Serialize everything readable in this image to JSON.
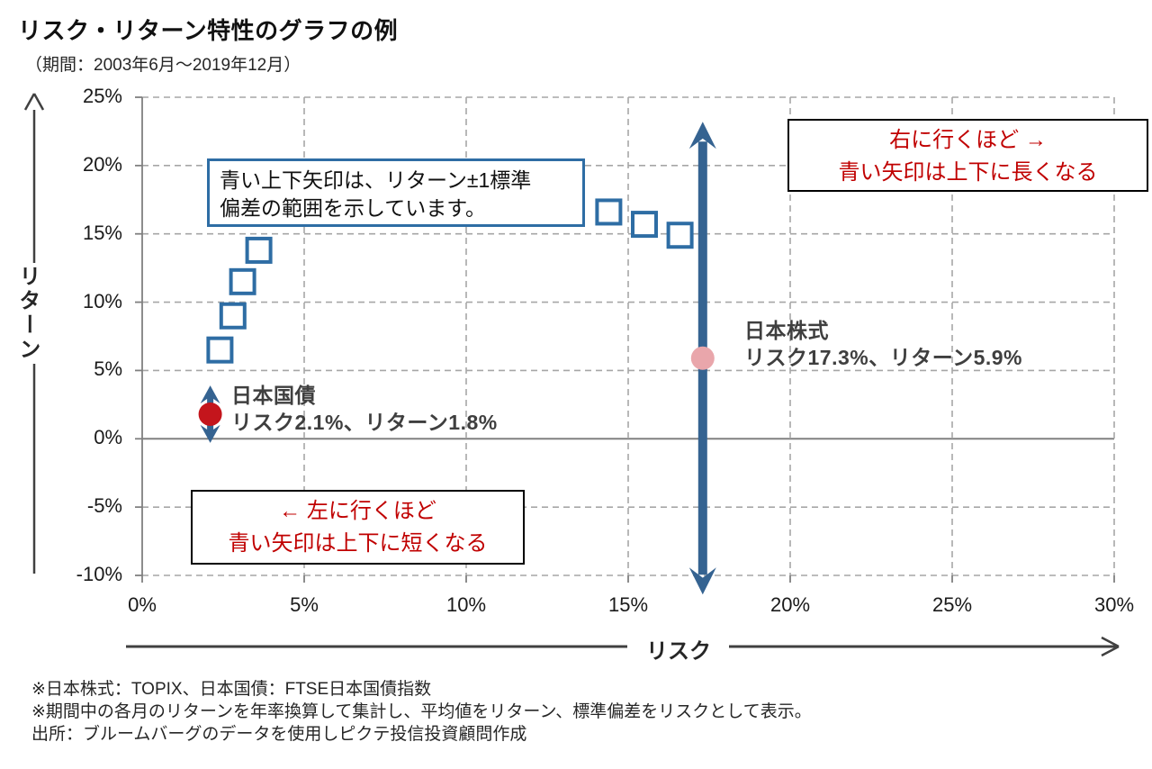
{
  "header": {
    "title": "リスク・リターン特性のグラフの例",
    "subtitle": "（期間：2003年6月～2019年12月）"
  },
  "axes": {
    "y_name": "リターン",
    "x_name": "リスク",
    "y_tick_labels": [
      "25%",
      "20%",
      "15%",
      "10%",
      "5%",
      "0%",
      "-5%",
      "-10%"
    ],
    "x_tick_labels": [
      "0%",
      "5%",
      "10%",
      "15%",
      "20%",
      "25%",
      "30%"
    ]
  },
  "annotations": {
    "stdev_note_line1": "青い上下矢印は、リターン±1標準",
    "stdev_note_line2": "偏差の範囲を示しています。",
    "right_note_line1": "右に行くほど →",
    "right_note_line2": "青い矢印は上下に長くなる",
    "left_note_line1": "← 左に行くほど",
    "left_note_line2": "青い矢印は上下に短くなる"
  },
  "points": {
    "jgb": {
      "name": "日本国債",
      "stats": "リスク2.1%、リターン1.8%"
    },
    "jp_equity": {
      "name": "日本株式",
      "stats": "リスク17.3%、リターン5.9%"
    }
  },
  "footer": {
    "lines": [
      "※日本株式：TOPIX、日本国債：FTSE日本国債指数",
      "※期間中の各月のリターンを年率換算して集計し、平均値をリターン、標準偏差をリスクとして表示。",
      "出所：ブルームバーグのデータを使用しピクテ投信投資顧問作成"
    ]
  },
  "colors": {
    "arrow_blue": "#356391",
    "square_blue": "#2e6da4",
    "dot_red": "#c4151c",
    "dot_pink": "#e9a6ab",
    "note_red": "#c00000",
    "grid": "#a6a6a6",
    "axis_gray": "#808080",
    "outer_axis": "#404040"
  },
  "chart_data": {
    "type": "scatter",
    "title": "リスク・リターン特性のグラフの例",
    "period": "2003年6月～2019年12月",
    "xlabel": "リスク",
    "ylabel": "リターン",
    "xlim": [
      0,
      30
    ],
    "ylim": [
      -10,
      25
    ],
    "x_tick_values": [
      0,
      5,
      10,
      15,
      20,
      25,
      30
    ],
    "y_tick_values": [
      25,
      20,
      15,
      10,
      5,
      0,
      -5,
      -10
    ],
    "grid": true,
    "grid_style": "dashed",
    "series": [
      {
        "id": "open-squares",
        "marker": "open-square",
        "color": "#2e6da4",
        "points_risk_return_pct": [
          [
            2.4,
            6.5
          ],
          [
            2.8,
            9.0
          ],
          [
            3.1,
            11.5
          ],
          [
            3.6,
            13.8
          ],
          [
            14.4,
            16.6
          ],
          [
            15.5,
            15.7
          ],
          [
            16.6,
            14.9
          ]
        ]
      },
      {
        "id": "jgb",
        "label": "日本国債",
        "marker": "filled-circle",
        "color": "#c4151c",
        "risk_pct": 2.1,
        "return_pct": 1.8,
        "stdev_arrow_range_pct": [
          -0.3,
          3.9
        ],
        "arrow": "short"
      },
      {
        "id": "jp-equity",
        "label": "日本株式",
        "marker": "filled-circle",
        "color": "#e9a6ab",
        "risk_pct": 17.3,
        "return_pct": 5.9,
        "stdev_arrow_range_pct": [
          -11.4,
          23.2
        ],
        "arrow": "long"
      }
    ]
  }
}
